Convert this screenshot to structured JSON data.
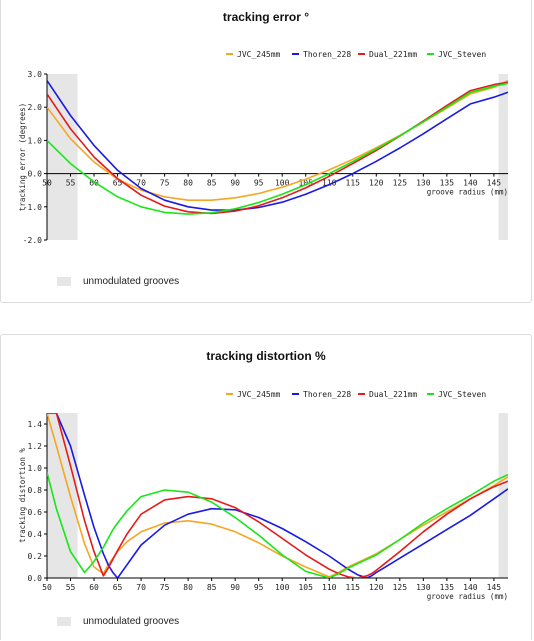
{
  "chart_data": [
    {
      "type": "line",
      "title": "tracking error °",
      "ylabel": "tracking error (degrees)",
      "xlabel": "groove radius (mm)",
      "xlim": [
        50,
        148
      ],
      "ylim": [
        -2.0,
        3.0
      ],
      "x_ticks": [
        "50",
        "55",
        "60",
        "65",
        "70",
        "75",
        "80",
        "85",
        "90",
        "95",
        "100",
        "105",
        "110",
        "115",
        "120",
        "125",
        "130",
        "135",
        "140",
        "145"
      ],
      "y_ticks": [
        "3.0",
        "2.0",
        "1.0",
        "0.0",
        "-1.0",
        "-2.0"
      ],
      "y_tick_values": [
        3,
        2,
        1,
        0,
        -1,
        -2
      ],
      "unmodulated_regions": [
        [
          50,
          56.5
        ],
        [
          146,
          148
        ]
      ],
      "footnote": "unmodulated grooves",
      "legend_position": "top-right",
      "x": [
        50,
        55,
        60,
        65,
        70,
        75,
        80,
        85,
        90,
        95,
        100,
        105,
        110,
        115,
        120,
        125,
        130,
        135,
        140,
        145,
        148
      ],
      "series": [
        {
          "name": "JVC_245mm",
          "color": "#f5a623",
          "values": [
            2.0,
            1.05,
            0.35,
            -0.17,
            -0.5,
            -0.7,
            -0.8,
            -0.8,
            -0.73,
            -0.6,
            -0.41,
            -0.17,
            0.11,
            0.43,
            0.78,
            1.15,
            1.55,
            1.97,
            2.4,
            2.6,
            2.8
          ]
        },
        {
          "name": "Thoren_228",
          "color": "#1a1ae6",
          "values": [
            2.8,
            1.75,
            0.85,
            0.1,
            -0.45,
            -0.8,
            -1.0,
            -1.1,
            -1.1,
            -1.02,
            -0.86,
            -0.62,
            -0.33,
            0.0,
            0.37,
            0.77,
            1.2,
            1.65,
            2.1,
            2.3,
            2.45
          ]
        },
        {
          "name": "Dual_221mm",
          "color": "#e61a1a",
          "values": [
            2.4,
            1.35,
            0.5,
            -0.15,
            -0.65,
            -0.98,
            -1.15,
            -1.2,
            -1.13,
            -0.97,
            -0.73,
            -0.43,
            -0.08,
            0.3,
            0.7,
            1.13,
            1.58,
            2.05,
            2.5,
            2.68,
            2.75
          ]
        },
        {
          "name": "JVC_Steven",
          "color": "#19e619",
          "values": [
            1.0,
            0.3,
            -0.25,
            -0.7,
            -1.0,
            -1.17,
            -1.22,
            -1.18,
            -1.06,
            -0.87,
            -0.62,
            -0.33,
            0.0,
            0.36,
            0.74,
            1.14,
            1.56,
            2.0,
            2.45,
            2.63,
            2.72
          ]
        }
      ]
    },
    {
      "type": "line",
      "title": "tracking distortion %",
      "ylabel": "tracking distortion %",
      "xlabel": "groove radius (mm)",
      "xlim": [
        50,
        148
      ],
      "ylim": [
        0.0,
        1.5
      ],
      "x_ticks": [
        "50",
        "55",
        "60",
        "65",
        "70",
        "75",
        "80",
        "85",
        "90",
        "95",
        "100",
        "105",
        "110",
        "115",
        "120",
        "125",
        "130",
        "135",
        "140",
        "145"
      ],
      "y_ticks": [
        "1.4",
        "1.2",
        "1.0",
        "0.8",
        "0.6",
        "0.4",
        "0.2",
        "0.0"
      ],
      "y_tick_values": [
        1.4,
        1.2,
        1.0,
        0.8,
        0.6,
        0.4,
        0.2,
        0.0
      ],
      "unmodulated_regions": [
        [
          50,
          56.5
        ],
        [
          146,
          148
        ]
      ],
      "footnote": "unmodulated grooves",
      "legend_position": "top-right",
      "x": [
        50,
        52,
        55,
        58,
        60,
        62,
        63,
        64,
        65,
        67,
        70,
        75,
        80,
        85,
        90,
        95,
        100,
        105,
        110,
        112,
        114,
        116,
        118,
        119,
        120,
        125,
        130,
        135,
        140,
        145,
        148
      ],
      "series": [
        {
          "name": "JVC_245mm",
          "color": "#f5a623",
          "values": [
            1.5,
            1.2,
            0.74,
            0.31,
            0.1,
            0.04,
            0.12,
            0.18,
            0.24,
            0.33,
            0.42,
            0.5,
            0.52,
            0.49,
            0.42,
            0.32,
            0.2,
            0.1,
            0.01,
            0.05,
            0.1,
            0.14,
            0.18,
            0.2,
            0.22,
            0.35,
            0.48,
            0.6,
            0.72,
            0.84,
            0.92
          ]
        },
        {
          "name": "Thoren_228",
          "color": "#1a1ae6",
          "values": [
            1.5,
            1.5,
            1.2,
            0.75,
            0.46,
            0.22,
            0.12,
            0.05,
            0.0,
            0.12,
            0.3,
            0.48,
            0.58,
            0.63,
            0.62,
            0.55,
            0.45,
            0.33,
            0.2,
            0.14,
            0.08,
            0.03,
            0.0,
            0.02,
            0.05,
            0.18,
            0.31,
            0.44,
            0.57,
            0.72,
            0.81
          ]
        },
        {
          "name": "Dual_221mm",
          "color": "#e61a1a",
          "values": [
            1.5,
            1.5,
            1.02,
            0.52,
            0.24,
            0.02,
            0.09,
            0.17,
            0.25,
            0.4,
            0.58,
            0.71,
            0.74,
            0.72,
            0.64,
            0.51,
            0.36,
            0.21,
            0.08,
            0.04,
            0.01,
            0.0,
            0.02,
            0.04,
            0.07,
            0.24,
            0.42,
            0.58,
            0.72,
            0.83,
            0.88
          ]
        },
        {
          "name": "JVC_Steven",
          "color": "#19e619",
          "values": [
            0.96,
            0.63,
            0.24,
            0.05,
            0.15,
            0.28,
            0.36,
            0.44,
            0.5,
            0.61,
            0.74,
            0.8,
            0.78,
            0.69,
            0.55,
            0.39,
            0.21,
            0.06,
            0.0,
            0.04,
            0.09,
            0.13,
            0.17,
            0.19,
            0.21,
            0.35,
            0.5,
            0.63,
            0.75,
            0.88,
            0.94
          ]
        }
      ]
    }
  ]
}
